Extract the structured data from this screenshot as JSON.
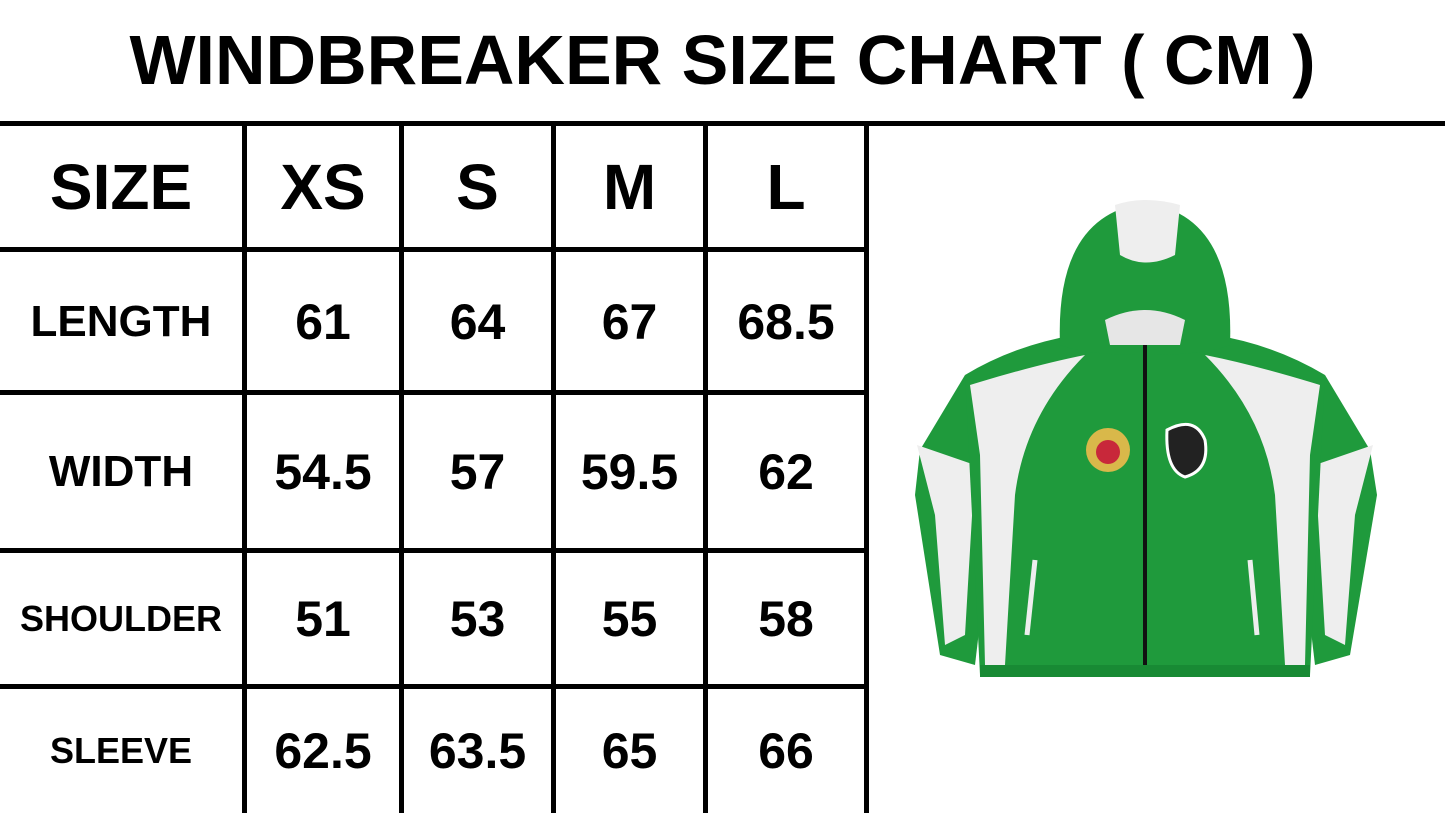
{
  "title": "WINDBREAKER SIZE CHART ( CM )",
  "table": {
    "header": [
      "SIZE",
      "XS",
      "S",
      "M",
      "L"
    ],
    "rows": [
      {
        "label": "LENGTH",
        "values": [
          "61",
          "64",
          "67",
          "68.5"
        ]
      },
      {
        "label": "WIDTH",
        "values": [
          "54.5",
          "57",
          "59.5",
          "62"
        ]
      },
      {
        "label": "SHOULDER",
        "values": [
          "51",
          "53",
          "55",
          "58"
        ]
      },
      {
        "label": "SLEEVE",
        "values": [
          "62.5",
          "63.5",
          "65",
          "66"
        ]
      }
    ]
  },
  "product_image": {
    "name": "green-white-windbreaker-jacket",
    "colors": {
      "body": "#1f9a3c",
      "panel": "#eeeeee",
      "zipper": "#111111"
    }
  }
}
